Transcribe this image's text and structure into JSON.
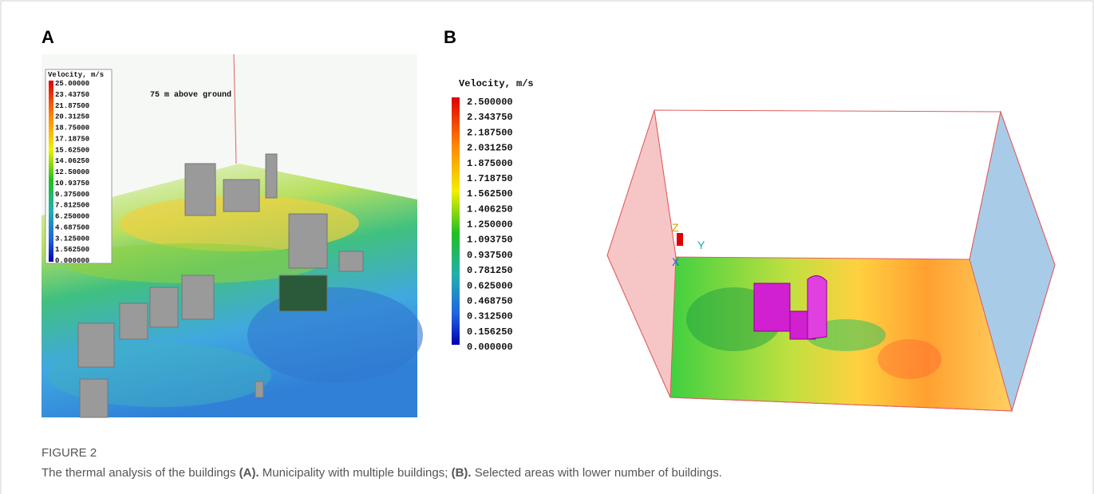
{
  "panels": [
    {
      "label": "A",
      "legend": {
        "title": "Velocity, m/s",
        "labels": [
          "25.00000",
          "23.43750",
          "21.87500",
          "20.31250",
          "18.75000",
          "17.18750",
          "15.62500",
          "14.06250",
          "12.50000",
          "10.93750",
          "9.375000",
          "7.812500",
          "6.250000",
          "4.687500",
          "3.125000",
          "1.562500",
          "0.000000"
        ]
      },
      "annotation": "75 m above ground"
    },
    {
      "label": "B",
      "legend": {
        "title": "Velocity, m/s",
        "labels": [
          "2.500000",
          "2.343750",
          "2.187500",
          "2.031250",
          "1.875000",
          "1.718750",
          "1.562500",
          "1.406250",
          "1.250000",
          "1.093750",
          "0.937500",
          "0.781250",
          "0.625000",
          "0.468750",
          "0.312500",
          "0.156250",
          "0.000000"
        ]
      },
      "axes": [
        "Z",
        "Y",
        "X"
      ]
    }
  ],
  "caption": {
    "label": "FIGURE 2",
    "parts": [
      "The thermal analysis of the buildings ",
      "(A).",
      " Municipality with multiple buildings; ",
      "(B).",
      " Selected areas with lower number of buildings."
    ]
  }
}
